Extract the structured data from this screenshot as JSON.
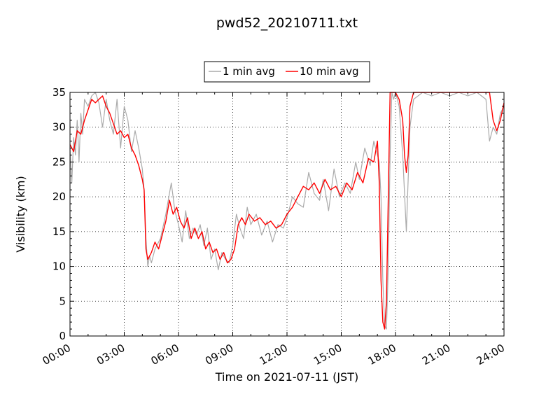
{
  "chart_data": {
    "type": "line",
    "title": "pwd52_20210711.txt",
    "xlabel": "Time on 2021-07-11 (JST)",
    "ylabel": "Visibility (km)",
    "xlim": [
      0,
      24
    ],
    "ylim": [
      0,
      35
    ],
    "x_ticks": [
      0,
      3,
      6,
      9,
      12,
      15,
      18,
      21,
      24
    ],
    "x_tick_labels": [
      "00:00",
      "03:00",
      "06:00",
      "09:00",
      "12:00",
      "15:00",
      "18:00",
      "21:00",
      "24:00"
    ],
    "y_ticks": [
      0,
      5,
      10,
      15,
      20,
      25,
      30,
      35
    ],
    "y_tick_labels": [
      "0",
      "5",
      "10",
      "15",
      "20",
      "25",
      "30",
      "35"
    ],
    "grid": true,
    "legend_position": "top-center",
    "series": [
      {
        "name": "1 min avg",
        "color": "#aaaaaa",
        "x": [
          0.0,
          0.1,
          0.2,
          0.3,
          0.4,
          0.5,
          0.6,
          0.7,
          0.8,
          1.0,
          1.2,
          1.4,
          1.6,
          1.8,
          2.0,
          2.2,
          2.4,
          2.6,
          2.8,
          3.0,
          3.2,
          3.4,
          3.6,
          3.8,
          4.0,
          4.1,
          4.2,
          4.3,
          4.4,
          4.5,
          4.7,
          5.0,
          5.3,
          5.6,
          5.8,
          6.0,
          6.2,
          6.4,
          6.6,
          6.8,
          7.0,
          7.2,
          7.4,
          7.6,
          7.8,
          8.0,
          8.2,
          8.4,
          8.6,
          8.8,
          9.0,
          9.2,
          9.4,
          9.6,
          9.8,
          10.0,
          10.3,
          10.6,
          10.9,
          11.2,
          11.5,
          11.8,
          12.0,
          12.3,
          12.6,
          12.9,
          13.2,
          13.5,
          13.8,
          14.0,
          14.3,
          14.6,
          14.9,
          15.2,
          15.5,
          15.8,
          16.0,
          16.3,
          16.6,
          16.8,
          17.0,
          17.1,
          17.2,
          17.3,
          17.4,
          17.5,
          17.6,
          17.7,
          17.8,
          17.9,
          18.0,
          18.2,
          18.4,
          18.6,
          18.8,
          19.0,
          19.5,
          20.0,
          20.5,
          21.0,
          21.5,
          22.0,
          22.5,
          23.0,
          23.2,
          23.4,
          23.6,
          23.8,
          24.0
        ],
        "values": [
          27.0,
          22.0,
          28.5,
          26.0,
          31.0,
          25.0,
          32.0,
          29.0,
          34.0,
          33.0,
          34.5,
          35.0,
          33.5,
          30.0,
          34.0,
          31.0,
          29.0,
          34.0,
          27.0,
          33.0,
          31.0,
          26.5,
          29.5,
          27.0,
          24.0,
          21.0,
          14.0,
          10.0,
          11.5,
          10.5,
          12.5,
          14.0,
          17.5,
          22.0,
          18.0,
          16.0,
          13.5,
          18.0,
          14.0,
          15.5,
          14.5,
          16.0,
          13.0,
          15.5,
          11.0,
          12.5,
          9.5,
          12.0,
          11.0,
          10.5,
          13.0,
          17.5,
          15.5,
          14.0,
          18.5,
          16.0,
          17.5,
          14.5,
          16.5,
          13.5,
          16.0,
          15.5,
          17.0,
          20.0,
          19.0,
          18.5,
          23.5,
          20.5,
          19.5,
          22.5,
          18.0,
          24.0,
          20.0,
          22.0,
          20.5,
          25.0,
          22.5,
          27.0,
          24.5,
          28.0,
          26.0,
          25.0,
          20.0,
          8.0,
          1.5,
          1.0,
          10.0,
          26.0,
          35.0,
          34.0,
          35.0,
          33.0,
          26.0,
          15.0,
          30.0,
          34.0,
          35.0,
          34.5,
          35.0,
          34.5,
          35.0,
          34.5,
          35.0,
          34.0,
          28.0,
          30.0,
          29.0,
          32.0,
          33.0
        ]
      },
      {
        "name": "10 min avg",
        "color": "#ff0000",
        "x": [
          0.0,
          0.2,
          0.4,
          0.6,
          0.8,
          1.0,
          1.2,
          1.4,
          1.6,
          1.8,
          2.0,
          2.2,
          2.4,
          2.6,
          2.8,
          3.0,
          3.2,
          3.4,
          3.6,
          3.8,
          4.0,
          4.1,
          4.2,
          4.3,
          4.4,
          4.5,
          4.7,
          4.9,
          5.1,
          5.3,
          5.5,
          5.7,
          5.9,
          6.1,
          6.3,
          6.5,
          6.7,
          6.9,
          7.1,
          7.3,
          7.5,
          7.7,
          7.9,
          8.1,
          8.3,
          8.5,
          8.7,
          8.9,
          9.1,
          9.3,
          9.5,
          9.7,
          9.9,
          10.2,
          10.5,
          10.8,
          11.1,
          11.4,
          11.7,
          12.0,
          12.3,
          12.6,
          12.9,
          13.2,
          13.5,
          13.8,
          14.1,
          14.4,
          14.7,
          15.0,
          15.3,
          15.6,
          15.9,
          16.2,
          16.5,
          16.8,
          17.0,
          17.1,
          17.2,
          17.3,
          17.4,
          17.5,
          17.6,
          17.7,
          17.8,
          18.0,
          18.2,
          18.4,
          18.5,
          18.6,
          18.7,
          18.8,
          19.0,
          23.2,
          23.4,
          23.6,
          23.8,
          24.0
        ],
        "values": [
          27.5,
          26.5,
          29.5,
          29.0,
          31.0,
          32.5,
          34.0,
          33.5,
          34.0,
          34.5,
          33.0,
          32.0,
          30.5,
          29.0,
          29.5,
          28.5,
          29.0,
          27.0,
          26.0,
          24.5,
          22.5,
          21.0,
          12.5,
          11.0,
          11.5,
          12.0,
          13.5,
          12.5,
          14.5,
          16.5,
          19.5,
          17.5,
          18.5,
          16.5,
          15.5,
          17.0,
          14.0,
          15.5,
          14.0,
          15.0,
          12.5,
          13.5,
          12.0,
          12.5,
          11.0,
          12.0,
          10.5,
          11.0,
          12.5,
          16.0,
          17.0,
          16.0,
          17.5,
          16.5,
          17.0,
          16.0,
          16.5,
          15.5,
          16.0,
          17.5,
          18.5,
          20.0,
          21.5,
          21.0,
          22.0,
          20.5,
          22.5,
          21.0,
          21.5,
          20.0,
          22.0,
          21.0,
          23.5,
          22.0,
          25.5,
          25.0,
          28.0,
          22.0,
          8.0,
          2.0,
          1.0,
          5.0,
          20.0,
          35.0,
          35.0,
          35.0,
          34.0,
          31.0,
          26.0,
          23.5,
          26.0,
          33.0,
          35.0,
          35.0,
          31.0,
          29.5,
          31.0,
          33.5
        ]
      }
    ]
  }
}
